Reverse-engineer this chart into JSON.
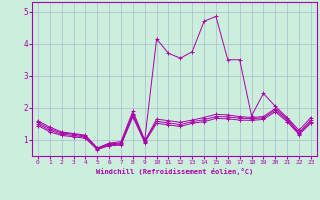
{
  "title": "",
  "xlabel": "Windchill (Refroidissement éolien,°C)",
  "ylabel": "",
  "background_color": "#cceedd",
  "line_color": "#aa00aa",
  "grid_color": "#aabbcc",
  "xlim": [
    -0.5,
    23.5
  ],
  "ylim": [
    0.5,
    5.3
  ],
  "xticks": [
    0,
    1,
    2,
    3,
    4,
    5,
    6,
    7,
    8,
    9,
    10,
    11,
    12,
    13,
    14,
    15,
    16,
    17,
    18,
    19,
    20,
    21,
    22,
    23
  ],
  "yticks": [
    1,
    2,
    3,
    4,
    5
  ],
  "lines": [
    {
      "x": [
        0,
        1,
        2,
        3,
        4,
        5,
        6,
        7,
        8,
        9,
        10,
        11,
        12,
        13,
        14,
        15,
        16,
        17,
        18,
        19,
        20,
        21,
        22,
        23
      ],
      "y": [
        1.6,
        1.4,
        1.25,
        1.2,
        1.15,
        0.75,
        0.9,
        0.95,
        1.9,
        1.0,
        4.15,
        3.7,
        3.55,
        3.75,
        4.7,
        4.85,
        3.5,
        3.5,
        1.75,
        2.45,
        2.05,
        1.7,
        1.3,
        1.7
      ]
    },
    {
      "x": [
        0,
        1,
        2,
        3,
        4,
        5,
        6,
        7,
        8,
        9,
        10,
        11,
        12,
        13,
        14,
        15,
        16,
        17,
        18,
        19,
        20,
        21,
        22,
        23
      ],
      "y": [
        1.55,
        1.35,
        1.22,
        1.18,
        1.12,
        0.74,
        0.88,
        0.9,
        1.82,
        0.97,
        1.65,
        1.6,
        1.55,
        1.62,
        1.7,
        1.8,
        1.78,
        1.73,
        1.7,
        1.73,
        1.98,
        1.67,
        1.23,
        1.62
      ]
    },
    {
      "x": [
        0,
        1,
        2,
        3,
        4,
        5,
        6,
        7,
        8,
        9,
        10,
        11,
        12,
        13,
        14,
        15,
        16,
        17,
        18,
        19,
        20,
        21,
        22,
        23
      ],
      "y": [
        1.5,
        1.3,
        1.18,
        1.14,
        1.09,
        0.72,
        0.85,
        0.87,
        1.77,
        0.95,
        1.58,
        1.53,
        1.48,
        1.57,
        1.63,
        1.73,
        1.72,
        1.68,
        1.66,
        1.69,
        1.93,
        1.62,
        1.2,
        1.57
      ]
    },
    {
      "x": [
        0,
        1,
        2,
        3,
        4,
        5,
        6,
        7,
        8,
        9,
        10,
        11,
        12,
        13,
        14,
        15,
        16,
        17,
        18,
        19,
        20,
        21,
        22,
        23
      ],
      "y": [
        1.45,
        1.25,
        1.14,
        1.1,
        1.05,
        0.7,
        0.82,
        0.84,
        1.72,
        0.92,
        1.52,
        1.47,
        1.42,
        1.52,
        1.57,
        1.67,
        1.66,
        1.62,
        1.61,
        1.64,
        1.88,
        1.57,
        1.17,
        1.52
      ]
    }
  ]
}
